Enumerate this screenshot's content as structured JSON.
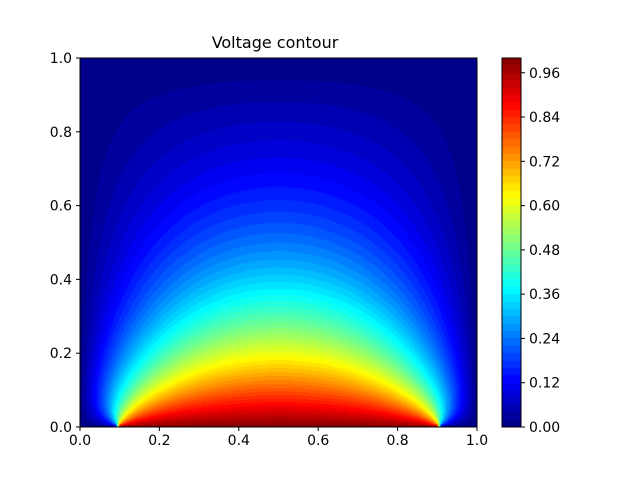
{
  "chart_data": {
    "type": "heatmap",
    "subtype": "filled-contour",
    "title": "Voltage contour",
    "xlabel": "",
    "ylabel": "",
    "xlim": [
      0.0,
      1.0
    ],
    "ylim": [
      0.0,
      1.0
    ],
    "x_ticks": [
      "0.0",
      "0.2",
      "0.4",
      "0.6",
      "0.8",
      "1.0"
    ],
    "y_ticks": [
      "0.0",
      "0.2",
      "0.4",
      "0.6",
      "0.8",
      "1.0"
    ],
    "colormap": "jet",
    "colorbar": {
      "range": [
        0.0,
        1.0
      ],
      "ticks": [
        "0.00",
        "0.12",
        "0.24",
        "0.36",
        "0.48",
        "0.60",
        "0.72",
        "0.84",
        "0.96"
      ],
      "levels": 50
    },
    "field": {
      "description_values": "potential V(x,y) on unit square, V=1 along bottom edge from x=0.1 to x=0.9, V=0 elsewhere on boundary",
      "boundary_voltage": 1.0,
      "electrode_x_range": [
        0.1,
        0.9
      ]
    },
    "grid": false
  }
}
